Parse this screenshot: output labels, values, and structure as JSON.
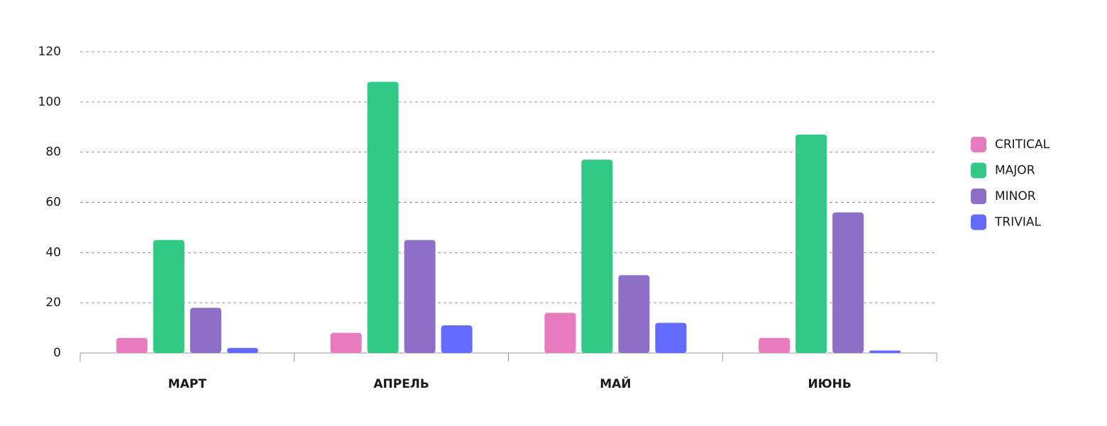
{
  "chart_data": {
    "type": "bar",
    "categories": [
      "МАРТ",
      "АПРЕЛЬ",
      "МАЙ",
      "ИЮНЬ"
    ],
    "series": [
      {
        "name": "CRITICAL",
        "color": "#e87bbd",
        "values": [
          6,
          8,
          16,
          6
        ]
      },
      {
        "name": "MAJOR",
        "color": "#31c985",
        "values": [
          45,
          108,
          77,
          87
        ]
      },
      {
        "name": "MINOR",
        "color": "#8e6fc8",
        "values": [
          18,
          45,
          31,
          56
        ]
      },
      {
        "name": "TRIVIAL",
        "color": "#636bff",
        "values": [
          2,
          11,
          12,
          1
        ]
      }
    ],
    "ylim": [
      0,
      120
    ],
    "yticks": [
      0,
      20,
      40,
      60,
      80,
      100,
      120
    ],
    "grid": true,
    "legend": "right"
  }
}
